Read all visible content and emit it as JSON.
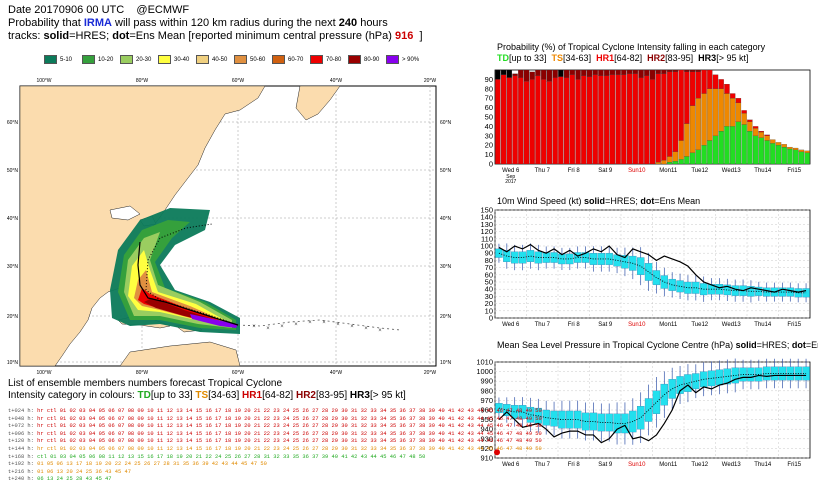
{
  "header": {
    "line1_date": "Date 20170906 00 UTC",
    "line1_org": "@ECMWF",
    "line2_pre": "Probability that ",
    "line2_storm": "IRMA",
    "line2_mid": " will pass within 120 km radius during the next ",
    "line2_hours": "240",
    "line2_post": " hours",
    "line3_pre": "tracks: ",
    "line3_solid": "solid",
    "line3_eq1": "=HRES; ",
    "line3_dot": "dot",
    "line3_eq2": "=Ens Mean [reported minimum central pressure (hPa) ",
    "line3_pressure": "916",
    "line3_post": "]"
  },
  "legend": [
    {
      "label": "5-10",
      "color": "#0b7a5a"
    },
    {
      "label": "10-20",
      "color": "#35a03c"
    },
    {
      "label": "20-30",
      "color": "#9acd60"
    },
    {
      "label": "30-40",
      "color": "#ffff40"
    },
    {
      "label": "40-50",
      "color": "#f0d080"
    },
    {
      "label": "50-60",
      "color": "#e09040"
    },
    {
      "label": "60-70",
      "color": "#d06010"
    },
    {
      "label": "70-80",
      "color": "#ee0000"
    },
    {
      "label": "80-90",
      "color": "#990000"
    },
    {
      "label": "> 90%",
      "color": "#8800ee"
    }
  ],
  "map": {
    "lon_labels": [
      "100°W",
      "80°W",
      "60°W",
      "40°W",
      "20°W"
    ],
    "lat_labels": [
      "60°N",
      "50°N",
      "40°N",
      "30°N",
      "20°N",
      "10°N"
    ]
  },
  "chart_data": [
    {
      "type": "bar",
      "title_pre": "Probability (%) of Tropical Cyclone Intensity falling in each category",
      "legend": [
        {
          "name": "TD",
          "range": "[up to 33]",
          "color": "#22dd22"
        },
        {
          "name": "TS",
          "range": "[34-63]",
          "color": "#ee8800"
        },
        {
          "name": "HR1",
          "range": "[64-82]",
          "color": "#ee0000"
        },
        {
          "name": "HR2",
          "range": "[83-95]",
          "color": "#8b0000"
        },
        {
          "name": "HR3",
          "range": "[> 95 kt]",
          "color": "#000000"
        }
      ],
      "yticks": [
        0,
        10,
        20,
        30,
        40,
        50,
        60,
        70,
        80,
        90
      ],
      "ylim": [
        0,
        100
      ],
      "x_labels": [
        {
          "text": "Wed 6",
          "sub1": "Sep",
          "sub2": "2017",
          "color": "#000"
        },
        {
          "text": "Thu 7",
          "color": "#000"
        },
        {
          "text": "Fri 8",
          "color": "#000"
        },
        {
          "text": "Sat 9",
          "color": "#000"
        },
        {
          "text": "Sun10",
          "color": "#dd0000"
        },
        {
          "text": "Mon11",
          "color": "#000"
        },
        {
          "text": "Tue12",
          "color": "#000"
        },
        {
          "text": "Wed13",
          "color": "#000"
        },
        {
          "text": "Thu14",
          "color": "#000"
        },
        {
          "text": "Fri15",
          "color": "#000"
        }
      ],
      "stacks": [
        [
          0,
          0,
          90,
          0,
          10
        ],
        [
          0,
          0,
          95,
          0,
          5
        ],
        [
          0,
          0,
          92,
          0,
          8
        ],
        [
          0,
          0,
          94,
          2,
          0
        ],
        [
          0,
          0,
          92,
          8,
          0
        ],
        [
          0,
          0,
          88,
          12,
          0
        ],
        [
          0,
          0,
          90,
          8,
          0
        ],
        [
          0,
          0,
          94,
          6,
          0
        ],
        [
          0,
          0,
          90,
          10,
          0
        ],
        [
          0,
          0,
          88,
          12,
          0
        ],
        [
          0,
          0,
          92,
          8,
          0
        ],
        [
          0,
          0,
          93,
          0,
          7
        ],
        [
          0,
          0,
          92,
          8,
          0
        ],
        [
          0,
          0,
          95,
          5,
          0
        ],
        [
          0,
          0,
          90,
          10,
          0
        ],
        [
          0,
          0,
          94,
          6,
          0
        ],
        [
          0,
          0,
          93,
          7,
          0
        ],
        [
          0,
          0,
          95,
          5,
          0
        ],
        [
          0,
          0,
          94,
          6,
          0
        ],
        [
          0,
          0,
          94,
          6,
          0
        ],
        [
          0,
          0,
          95,
          5,
          0
        ],
        [
          0,
          0,
          95,
          5,
          0
        ],
        [
          0,
          0,
          95,
          5,
          0
        ],
        [
          0,
          0,
          96,
          4,
          0
        ],
        [
          0,
          0,
          96,
          4,
          0
        ],
        [
          0,
          0,
          92,
          8,
          0
        ],
        [
          0,
          0,
          94,
          6,
          0
        ],
        [
          0,
          0,
          90,
          10,
          0
        ],
        [
          0,
          2,
          94,
          4,
          0
        ],
        [
          0,
          4,
          92,
          4,
          0
        ],
        [
          2,
          6,
          90,
          2,
          0
        ],
        [
          3,
          10,
          85,
          2,
          0
        ],
        [
          5,
          20,
          75,
          0,
          0
        ],
        [
          8,
          35,
          55,
          2,
          0
        ],
        [
          12,
          50,
          36,
          2,
          0
        ],
        [
          15,
          55,
          28,
          2,
          0
        ],
        [
          20,
          55,
          25,
          0,
          0
        ],
        [
          25,
          55,
          20,
          0,
          0
        ],
        [
          30,
          50,
          15,
          0,
          0
        ],
        [
          35,
          45,
          10,
          0,
          0
        ],
        [
          40,
          35,
          10,
          0,
          0
        ],
        [
          40,
          30,
          5,
          0,
          0
        ],
        [
          45,
          20,
          5,
          0,
          0
        ],
        [
          42,
          12,
          3,
          0,
          0
        ],
        [
          35,
          10,
          2,
          0,
          0
        ],
        [
          30,
          8,
          2,
          0,
          0
        ],
        [
          28,
          6,
          1,
          0,
          0
        ],
        [
          25,
          5,
          1,
          0,
          0
        ],
        [
          22,
          4,
          0,
          0,
          0
        ],
        [
          20,
          3,
          0,
          0,
          0
        ],
        [
          18,
          3,
          0,
          0,
          0
        ],
        [
          16,
          2,
          0,
          0,
          0
        ],
        [
          15,
          2,
          0,
          0,
          0
        ],
        [
          13,
          2,
          0,
          0,
          0
        ],
        [
          12,
          2,
          0,
          0,
          0
        ]
      ]
    },
    {
      "type": "line",
      "title_pre": "10m Wind Speed (kt) ",
      "title_solid": "solid",
      "title_mid": "=HRES; ",
      "title_dot": "dot",
      "title_post": "=Ens Mean",
      "yticks": [
        0,
        10,
        20,
        30,
        40,
        50,
        60,
        70,
        80,
        90,
        100,
        110,
        120,
        130,
        140,
        150
      ],
      "ylim": [
        0,
        150
      ],
      "x_labels": [
        "Wed 6",
        "Thu 7",
        "Fri 8",
        "Sat 9",
        "Sun10",
        "Mon11",
        "Tue12",
        "Wed13",
        "Thu14",
        "Fri15"
      ],
      "hres": [
        98,
        92,
        100,
        96,
        102,
        94,
        90,
        96,
        88,
        94,
        86,
        90,
        96,
        92,
        100,
        88,
        84,
        96,
        92,
        88,
        80,
        86,
        82,
        78,
        72,
        60,
        50,
        46,
        42,
        44,
        40,
        38,
        42,
        40,
        38,
        36,
        40,
        38,
        36,
        38
      ],
      "ens_mean": [
        90,
        86,
        84,
        84,
        86,
        84,
        84,
        84,
        82,
        82,
        84,
        84,
        82,
        82,
        82,
        80,
        78,
        76,
        72,
        64,
        56,
        50,
        46,
        44,
        42,
        42,
        40,
        40,
        40,
        39,
        38,
        38,
        37,
        37,
        36,
        36,
        36,
        36,
        35,
        35
      ],
      "box_half": [
        6,
        8,
        8,
        8,
        8,
        8,
        7,
        7,
        7,
        7,
        7,
        7,
        8,
        8,
        8,
        8,
        9,
        10,
        12,
        12,
        10,
        9,
        8,
        8,
        8,
        8,
        8,
        7,
        7,
        7,
        7,
        7,
        7,
        6,
        6,
        6,
        6,
        6,
        6,
        6
      ]
    },
    {
      "type": "line",
      "title_pre": "Mean Sea Level Pressure in Tropical Cyclone Centre (hPa) ",
      "title_solid": "solid",
      "title_mid": "=HRES; ",
      "title_dot": "dot",
      "title_post": "=Ens Mean",
      "yticks": [
        910,
        920,
        930,
        940,
        950,
        960,
        970,
        980,
        990,
        1000,
        1010
      ],
      "ylim": [
        910,
        1010
      ],
      "x_labels": [
        "Wed 6",
        "Thu 7",
        "Fri 8",
        "Sat 9",
        "Sun10",
        "Mon11",
        "Tue12",
        "Wed13",
        "Thu14",
        "Fri15"
      ],
      "observed": 916,
      "hres": [
        950,
        958,
        950,
        942,
        944,
        946,
        940,
        932,
        936,
        938,
        938,
        934,
        934,
        926,
        930,
        940,
        944,
        930,
        932,
        928,
        934,
        946,
        960,
        980,
        986,
        978,
        984,
        982,
        986,
        988,
        992,
        994,
        994,
        996,
        995,
        996,
        996,
        996,
        996,
        996
      ],
      "ens_mean": [
        962,
        960,
        958,
        958,
        955,
        954,
        952,
        951,
        950,
        950,
        950,
        948,
        948,
        947,
        947,
        946,
        946,
        948,
        952,
        960,
        968,
        976,
        982,
        986,
        988,
        990,
        992,
        993,
        994,
        995,
        996,
        997,
        997,
        997,
        998,
        998,
        998,
        998,
        998,
        998
      ],
      "box_half": [
        5,
        6,
        7,
        7,
        8,
        8,
        8,
        8,
        9,
        9,
        9,
        9,
        9,
        9,
        9,
        10,
        10,
        11,
        12,
        12,
        12,
        11,
        10,
        9,
        9,
        8,
        8,
        8,
        8,
        8,
        8,
        7,
        7,
        7,
        7,
        7,
        7,
        7,
        7,
        7
      ]
    }
  ],
  "ensemble": {
    "title": "List of ensemble members numbers forecast Tropical Cyclone",
    "subtitle_pre": "Intensity category in colours: ",
    "cats": [
      {
        "name": "TD",
        "range": "[up to 33]"
      },
      {
        "name": "TS",
        "range": "[34-63]"
      },
      {
        "name": "HR1",
        "range": "[64-82]"
      },
      {
        "name": "HR2",
        "range": "[83-95]"
      },
      {
        "name": "HR3",
        "range": "[> 95 kt]"
      }
    ],
    "rows": [
      {
        "lead": "t+024 h:",
        "text": "hr ctl 01 02 03 04 05 06 07 08 09 10 11 12 13 14 15 16 17 18 19 20 21 22 23 24 25 26 27 28 29 30 31 32 33 34 35 36 37 38 39 40 41 42 43 44 45 46 47 48 49 50",
        "color": "#cc0000"
      },
      {
        "lead": "t+048 h:",
        "text": "hr ctl 01 02 03 04 05 06 07 08 09 10 11 12 13 14 15 16 17 18 19 20 21 22 23 24 25 26 27 28 29 30 31 32 33 34 35 36 37 38 39 40 41 42 43 44 45 46 47 48 49 50",
        "color": "#cc0000"
      },
      {
        "lead": "t+072 h:",
        "text": "hr ctl 01 02 03 04 05 06 07 08 09 10 11 12 13 14 15 16 17 18 19 20 21 22 23 24 25 26 27 28 29 30 31 32 33 34 35 36 37 38 39 40 41 42 43 44 45 46 47 48 49 50",
        "color": "#cc0000"
      },
      {
        "lead": "t+096 h:",
        "text": "hr ctl 01 02 03 04 05 06 07 08 09 10 11 12 13 14 15 16 17 18 19 20 21 22 23 24 25 26 27 28 29 30 31 32 33 34 35 36 37 38 39 40 41 42 43 44 45 46 47 48 49 50",
        "color": "#cc0000"
      },
      {
        "lead": "t+120 h:",
        "text": "hr ctl 01 02 03 04 05 06 07 08 09 10 11 12 13 14 15 16 17 18 19 20 21 22 23 24 25 26 27 28 29 30 31 32 33 34 35 36 37 38 39 40 41 42 43 44 45 46 47 48 49 50",
        "color": "#cc0000"
      },
      {
        "lead": "t+144 h:",
        "text": "hr ctl 01 02 03 04 05 06 07 08 09 10 11 12 13 14 15 16 17 18 19 20 21 22 23 24 25 26 27 28 29 30 31 32 33 34 35 36 37 38 39 40 41 42 43 44 45 46 47 48 49 50",
        "color": "#e08a00"
      },
      {
        "lead": "t+168 h:",
        "text": "ctl 01 03 04 05 06 08 11 12 13 15 16 17 18 19 20 21 22 24 25 26 27 28 31 32 33 35 36 37 39 40 41 42 43 44 45 46 47 48 50",
        "color": "#22aa22"
      },
      {
        "lead": "t+192 h:",
        "text": "01 05 06 13 17 18 19 20 22 24 25 26 27 28 31 35 36 39 42 43 44 45 47 50",
        "color": "#e08a00"
      },
      {
        "lead": "t+216 h:",
        "text": "01 06 13 20 24 25 36 43 45 47",
        "color": "#e08a00"
      },
      {
        "lead": "t+240 h:",
        "text": "06 13 24 25 28 43 45 47",
        "color": "#22aa22"
      }
    ]
  }
}
